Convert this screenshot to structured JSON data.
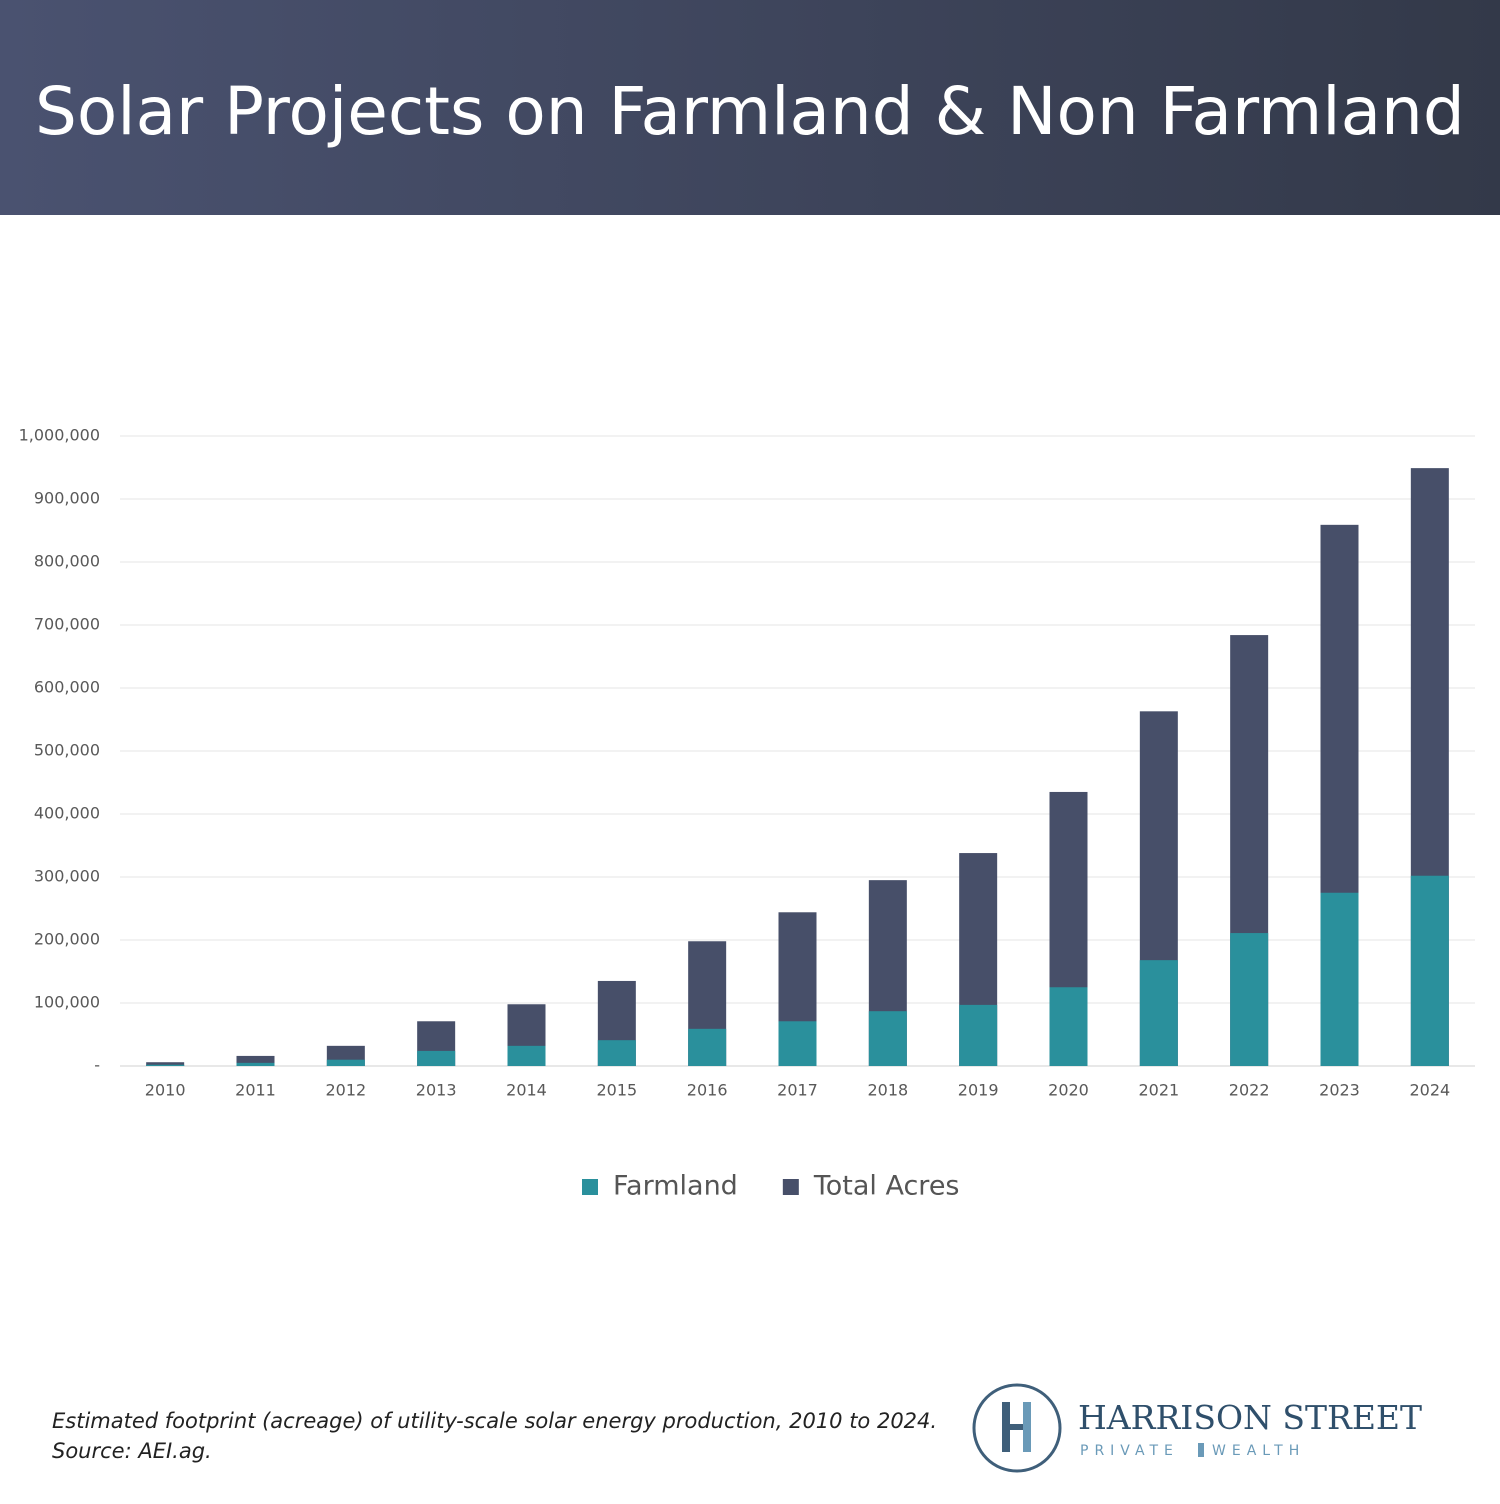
{
  "chart_data": {
    "type": "bar",
    "barmode": "overlay",
    "title": "Solar Projects on Farmland & Non Farmland",
    "categories": [
      "2010",
      "2011",
      "2012",
      "2013",
      "2014",
      "2015",
      "2016",
      "2017",
      "2018",
      "2019",
      "2020",
      "2021",
      "2022",
      "2023",
      "2024"
    ],
    "series": [
      {
        "name": "Farmland",
        "color": "#2a909c",
        "values": [
          2000,
          5000,
          10000,
          24000,
          32000,
          41000,
          59000,
          71000,
          87000,
          97000,
          125000,
          168000,
          211000,
          275000,
          302000
        ]
      },
      {
        "name": "Total Acres",
        "color": "#474f69",
        "values": [
          6000,
          16000,
          32000,
          71000,
          98000,
          135000,
          198000,
          244000,
          295000,
          338000,
          435000,
          563000,
          684000,
          859000,
          949000
        ]
      }
    ],
    "ylim": [
      0,
      1000000
    ],
    "yticks": [
      {
        "value": 0,
        "label": "-"
      },
      {
        "value": 100000,
        "label": "100,000"
      },
      {
        "value": 200000,
        "label": "200,000"
      },
      {
        "value": 300000,
        "label": "300,000"
      },
      {
        "value": 400000,
        "label": "400,000"
      },
      {
        "value": 500000,
        "label": "500,000"
      },
      {
        "value": 600000,
        "label": "600,000"
      },
      {
        "value": 700000,
        "label": "700,000"
      },
      {
        "value": 800000,
        "label": "800,000"
      },
      {
        "value": 900000,
        "label": "900,000"
      },
      {
        "value": 1000000,
        "label": "1,000,000"
      }
    ],
    "grid": true,
    "legend": "bottom"
  },
  "footnote": [
    "Estimated footprint (acreage) of utility-scale solar energy production, 2010 to 2024.",
    "Source: AEI.ag."
  ],
  "logo": {
    "name": "HARRISON STREET",
    "left": "PRIVATE",
    "right": "WEALTH"
  }
}
